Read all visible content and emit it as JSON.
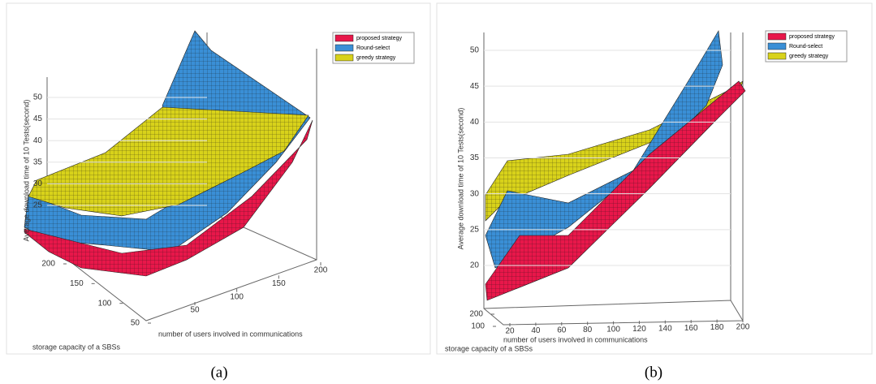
{
  "chart_data": [
    {
      "type": "surface",
      "caption": "(a)",
      "zlabel": "Average download time of 10 Tests(second)",
      "xlabel": "number of users involved in communications",
      "ylabel": "storage capacity of a SBSs",
      "zticks": [
        25,
        30,
        35,
        40,
        45,
        50
      ],
      "xticks": [
        50,
        100,
        150,
        200
      ],
      "yticks": [
        50,
        100,
        150,
        200
      ],
      "series": [
        {
          "name": "proposed strategy",
          "color": "#e8174a"
        },
        {
          "name": "Round-select",
          "color": "#3a8fd6"
        },
        {
          "name": "greedy strategy",
          "color": "#d8d21a"
        }
      ]
    },
    {
      "type": "surface",
      "caption": "(b)",
      "zlabel": "Average download time of 10 Tests(second)",
      "xlabel": "number of users involved in communications",
      "ylabel": "storage capacity of a SBSs",
      "zticks": [
        20,
        25,
        30,
        35,
        40,
        45,
        50
      ],
      "xticks": [
        20,
        40,
        60,
        80,
        100,
        120,
        140,
        160,
        180,
        200
      ],
      "yticks": [
        100,
        200
      ],
      "series": [
        {
          "name": "proposed strategy",
          "color": "#e8174a"
        },
        {
          "name": "Round-select",
          "color": "#3a8fd6"
        },
        {
          "name": "greedy strategy",
          "color": "#d8d21a"
        }
      ]
    }
  ]
}
